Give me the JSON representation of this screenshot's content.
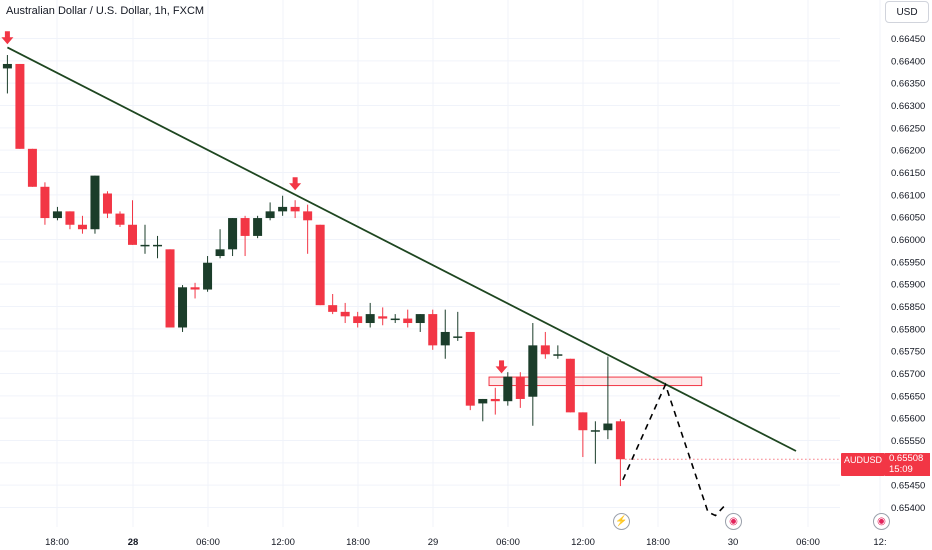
{
  "header": {
    "title": "Australian Dollar / U.S. Dollar, 1h, FXCM",
    "currency_button": "USD"
  },
  "price_badge": {
    "symbol": "AUDUSD",
    "price": "0.65508",
    "countdown": "15:09"
  },
  "events": [
    {
      "icon": "flash-event-icon",
      "time_index": 108
    },
    {
      "icon": "flag-event-icon",
      "time_index": 117
    },
    {
      "icon": "flag-event-icon",
      "time_index": 139
    }
  ],
  "colors": {
    "up": "#1b3d2a",
    "down": "#f23645",
    "trendline": "#1e4620",
    "axis_text": "#131722"
  },
  "chart_data": {
    "type": "candlestick",
    "symbol": "AUDUSD",
    "interval": "1h",
    "y_axis": {
      "ticks": [
        "0.66450",
        "0.66400",
        "0.66350",
        "0.66300",
        "0.66250",
        "0.66200",
        "0.66150",
        "0.66100",
        "0.66050",
        "0.66000",
        "0.65950",
        "0.65900",
        "0.65850",
        "0.65800",
        "0.65750",
        "0.65700",
        "0.65650",
        "0.65600",
        "0.65550",
        "0.65500",
        "0.65450",
        "0.65400"
      ],
      "range": [
        0.6537,
        0.66465
      ]
    },
    "x_axis": {
      "labels": [
        {
          "text": "18:00",
          "index": 0
        },
        {
          "text": "28",
          "index": 6,
          "bold": true
        },
        {
          "text": "06:00",
          "index": 12
        },
        {
          "text": "12:00",
          "index": 18
        },
        {
          "text": "18:00",
          "index": 24
        },
        {
          "text": "29",
          "index": 30
        },
        {
          "text": "06:00",
          "index": 36
        },
        {
          "text": "12:00",
          "index": 42
        },
        {
          "text": "18:00",
          "index": 48
        },
        {
          "text": "30",
          "index": 54
        },
        {
          "text": "06:00",
          "index": 60
        },
        {
          "text": "12:",
          "index": 66
        }
      ]
    },
    "candles": [
      {
        "o": 0.66383,
        "h": 0.66413,
        "l": 0.66327,
        "c": 0.66393
      },
      {
        "o": 0.66393,
        "h": 0.66393,
        "l": 0.66203,
        "c": 0.66203
      },
      {
        "o": 0.66203,
        "h": 0.66203,
        "l": 0.66118,
        "c": 0.66118
      },
      {
        "o": 0.66118,
        "h": 0.66128,
        "l": 0.66033,
        "c": 0.66048
      },
      {
        "o": 0.66048,
        "h": 0.66073,
        "l": 0.66043,
        "c": 0.66063
      },
      {
        "o": 0.66063,
        "h": 0.66063,
        "l": 0.66023,
        "c": 0.66033
      },
      {
        "o": 0.66033,
        "h": 0.66053,
        "l": 0.66013,
        "c": 0.66023
      },
      {
        "o": 0.66023,
        "h": 0.66143,
        "l": 0.66013,
        "c": 0.66143
      },
      {
        "o": 0.66103,
        "h": 0.66108,
        "l": 0.66048,
        "c": 0.66058
      },
      {
        "o": 0.66058,
        "h": 0.66063,
        "l": 0.66028,
        "c": 0.66033
      },
      {
        "o": 0.66033,
        "h": 0.66088,
        "l": 0.65988,
        "c": 0.65988
      },
      {
        "o": 0.65988,
        "h": 0.66033,
        "l": 0.65968,
        "c": 0.65988
      },
      {
        "o": 0.65988,
        "h": 0.66008,
        "l": 0.65958,
        "c": 0.65988
      },
      {
        "o": 0.65978,
        "h": 0.65978,
        "l": 0.65803,
        "c": 0.65803
      },
      {
        "o": 0.65803,
        "h": 0.65898,
        "l": 0.65793,
        "c": 0.65893
      },
      {
        "o": 0.65893,
        "h": 0.65903,
        "l": 0.65868,
        "c": 0.65888
      },
      {
        "o": 0.65888,
        "h": 0.65963,
        "l": 0.65883,
        "c": 0.65948
      },
      {
        "o": 0.65963,
        "h": 0.66023,
        "l": 0.65958,
        "c": 0.65978
      },
      {
        "o": 0.65978,
        "h": 0.66048,
        "l": 0.65963,
        "c": 0.66048
      },
      {
        "o": 0.66048,
        "h": 0.66053,
        "l": 0.65963,
        "c": 0.66008
      },
      {
        "o": 0.66008,
        "h": 0.66053,
        "l": 0.66003,
        "c": 0.66048
      },
      {
        "o": 0.66048,
        "h": 0.66083,
        "l": 0.66043,
        "c": 0.66063
      },
      {
        "o": 0.66063,
        "h": 0.66098,
        "l": 0.66053,
        "c": 0.66073
      },
      {
        "o": 0.66073,
        "h": 0.66088,
        "l": 0.66048,
        "c": 0.66063
      },
      {
        "o": 0.66063,
        "h": 0.66078,
        "l": 0.65968,
        "c": 0.66043
      },
      {
        "o": 0.66033,
        "h": 0.66033,
        "l": 0.65853,
        "c": 0.65853
      },
      {
        "o": 0.65853,
        "h": 0.65878,
        "l": 0.65833,
        "c": 0.65838
      },
      {
        "o": 0.65838,
        "h": 0.65858,
        "l": 0.65813,
        "c": 0.65828
      },
      {
        "o": 0.65828,
        "h": 0.65838,
        "l": 0.65803,
        "c": 0.65813
      },
      {
        "o": 0.65813,
        "h": 0.65858,
        "l": 0.65803,
        "c": 0.65833
      },
      {
        "o": 0.65828,
        "h": 0.65848,
        "l": 0.65808,
        "c": 0.65823
      },
      {
        "o": 0.65823,
        "h": 0.65833,
        "l": 0.65813,
        "c": 0.65823
      },
      {
        "o": 0.65823,
        "h": 0.65843,
        "l": 0.65803,
        "c": 0.65813
      },
      {
        "o": 0.65813,
        "h": 0.65833,
        "l": 0.65793,
        "c": 0.65833
      },
      {
        "o": 0.65833,
        "h": 0.65843,
        "l": 0.65753,
        "c": 0.65763
      },
      {
        "o": 0.65763,
        "h": 0.65843,
        "l": 0.65733,
        "c": 0.65793
      },
      {
        "o": 0.65783,
        "h": 0.65838,
        "l": 0.65773,
        "c": 0.65783
      },
      {
        "o": 0.65793,
        "h": 0.65793,
        "l": 0.65618,
        "c": 0.65628
      },
      {
        "o": 0.65633,
        "h": 0.65643,
        "l": 0.65593,
        "c": 0.65643
      },
      {
        "o": 0.65643,
        "h": 0.65668,
        "l": 0.65608,
        "c": 0.65638
      },
      {
        "o": 0.65638,
        "h": 0.65703,
        "l": 0.65628,
        "c": 0.65693
      },
      {
        "o": 0.65693,
        "h": 0.65703,
        "l": 0.65623,
        "c": 0.65643
      },
      {
        "o": 0.65648,
        "h": 0.65813,
        "l": 0.65583,
        "c": 0.65763
      },
      {
        "o": 0.65763,
        "h": 0.65793,
        "l": 0.65733,
        "c": 0.65743
      },
      {
        "o": 0.65743,
        "h": 0.65763,
        "l": 0.65733,
        "c": 0.65743
      },
      {
        "o": 0.65733,
        "h": 0.65733,
        "l": 0.65613,
        "c": 0.65613
      },
      {
        "o": 0.65613,
        "h": 0.65613,
        "l": 0.65513,
        "c": 0.65573
      },
      {
        "o": 0.65573,
        "h": 0.65593,
        "l": 0.65498,
        "c": 0.65573
      },
      {
        "o": 0.65573,
        "h": 0.65738,
        "l": 0.65553,
        "c": 0.65588
      },
      {
        "o": 0.65593,
        "h": 0.65598,
        "l": 0.65448,
        "c": 0.65508
      }
    ],
    "trendline": {
      "from": {
        "index": 0,
        "price": 0.6643
      },
      "to": {
        "index": 63.5,
        "price": 0.65525
      }
    },
    "resistance_zone": {
      "from_index": 38.5,
      "to_index": 55.5,
      "top": 0.65692,
      "bottom": 0.65673
    },
    "projection_path": [
      {
        "index": 49.2,
        "price": 0.65462
      },
      {
        "index": 52.6,
        "price": 0.65675
      },
      {
        "index": 56.0,
        "price": 0.6539
      },
      {
        "index": 56.6,
        "price": 0.65382
      },
      {
        "index": 57.3,
        "price": 0.65403
      }
    ],
    "arrows": [
      {
        "index": 0,
        "price": 0.66435
      },
      {
        "index": 23,
        "price": 0.66108
      },
      {
        "index": 39.5,
        "price": 0.65698
      }
    ],
    "last_price": 0.65508
  }
}
